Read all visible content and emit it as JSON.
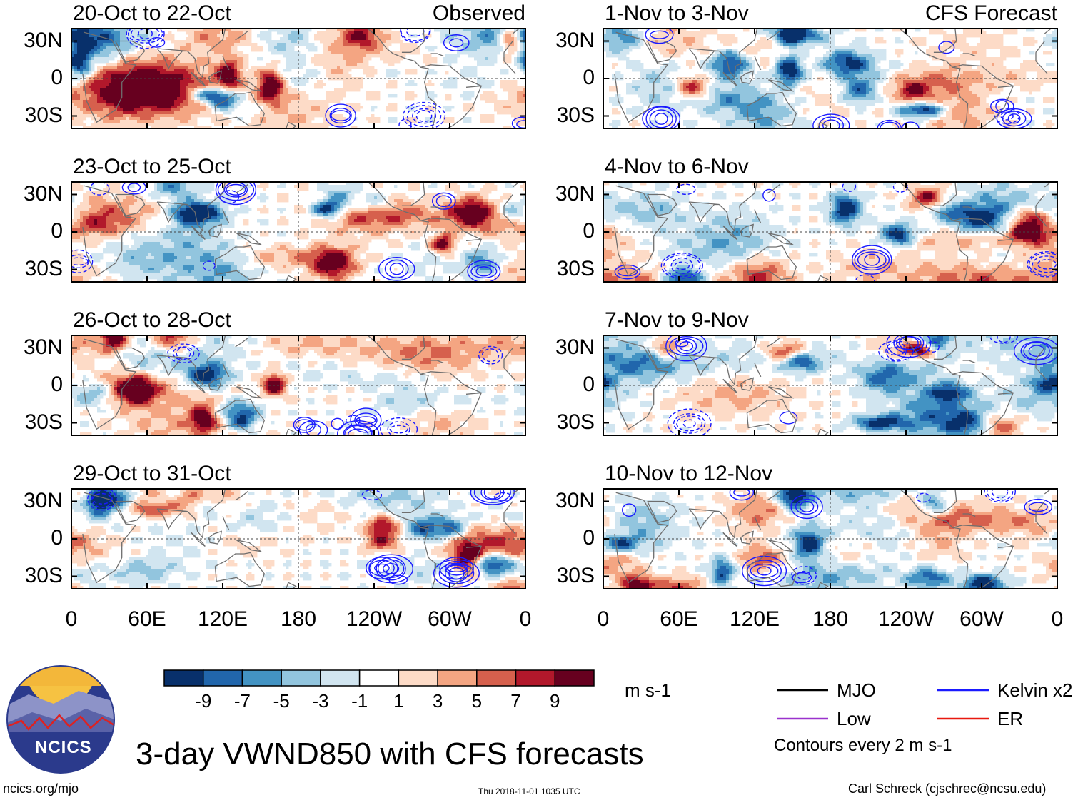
{
  "chart_data": {
    "type": "heatmap",
    "title": "3-day VWND850 with CFS forecasts",
    "variable": "VWND850",
    "units": "m s-1",
    "column_labels": [
      "Observed",
      "CFS Forecast"
    ],
    "latitude_range": [
      -40,
      40
    ],
    "longitude_range": [
      0,
      360
    ],
    "y_ticks": [
      {
        "lat": 30,
        "label": "30N"
      },
      {
        "lat": 0,
        "label": "0"
      },
      {
        "lat": -30,
        "label": "30S"
      }
    ],
    "x_ticks": [
      {
        "lon": 0,
        "label": "0"
      },
      {
        "lon": 60,
        "label": "60E"
      },
      {
        "lon": 120,
        "label": "120E"
      },
      {
        "lon": 180,
        "label": "180"
      },
      {
        "lon": 240,
        "label": "120W"
      },
      {
        "lon": 300,
        "label": "60W"
      },
      {
        "lon": 360,
        "label": "0"
      }
    ],
    "colorbar": {
      "levels": [
        -9,
        -7,
        -5,
        -3,
        -1,
        1,
        3,
        5,
        7,
        9
      ],
      "level_labels": [
        "-9",
        "-7",
        "-5",
        "-3",
        "-1",
        "1",
        "3",
        "5",
        "7",
        "9"
      ],
      "colors": [
        "#08306b",
        "#2166ac",
        "#4393c3",
        "#92c5de",
        "#d1e5f0",
        "#ffffff",
        "#fddbc7",
        "#f4a582",
        "#d6604d",
        "#b2182b",
        "#67001f"
      ]
    },
    "contour_interval": "Contours every 2 m s-1",
    "legend": [
      {
        "name": "MJO",
        "color": "#000000"
      },
      {
        "name": "Kelvin x2",
        "color": "#1a1aff"
      },
      {
        "name": "Low",
        "color": "#9a32cd"
      },
      {
        "name": "ER",
        "color": "#e8190f"
      }
    ],
    "panels": [
      {
        "period": "20-Oct to 22-Oct",
        "source": "Observed",
        "seed": 11
      },
      {
        "period": "23-Oct to 25-Oct",
        "source": "Observed",
        "seed": 23
      },
      {
        "period": "26-Oct to 28-Oct",
        "source": "Observed",
        "seed": 37
      },
      {
        "period": "29-Oct to 31-Oct",
        "source": "Observed",
        "seed": 41
      },
      {
        "period": "1-Nov to 3-Nov",
        "source": "CFS Forecast",
        "seed": 53
      },
      {
        "period": "4-Nov to 6-Nov",
        "source": "CFS Forecast",
        "seed": 67
      },
      {
        "period": "7-Nov to 9-Nov",
        "source": "CFS Forecast",
        "seed": 79
      },
      {
        "period": "10-Nov to 12-Nov",
        "source": "CFS Forecast",
        "seed": 83
      }
    ]
  },
  "footer": {
    "logo_text": "NCICS",
    "website": "ncics.org/mjo",
    "timestamp": "Thu 2018-11-01 1035 UTC",
    "credit": "Carl Schreck (cjschrec@ncsu.edu)"
  }
}
